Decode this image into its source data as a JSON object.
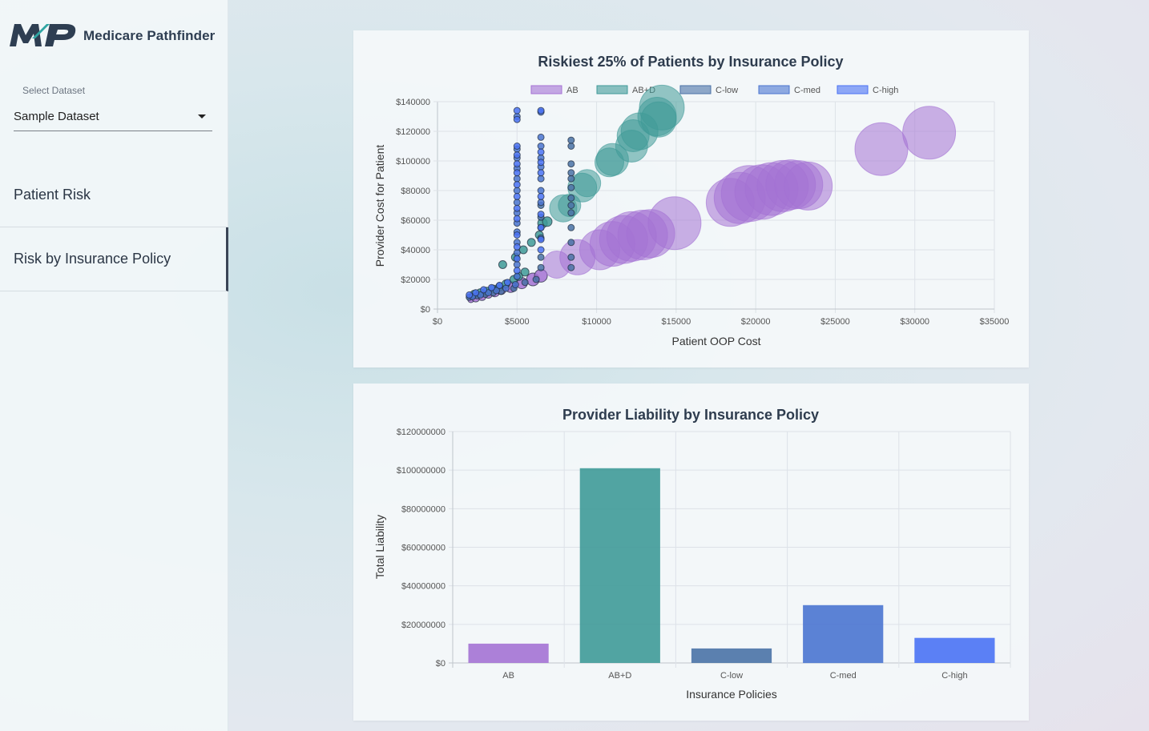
{
  "app": {
    "name": "Medicare Pathfinder",
    "logo_mark": "MP"
  },
  "sidebar": {
    "select_label": "Select Dataset",
    "select_value": "Sample Dataset",
    "items": [
      {
        "label": "Patient Risk",
        "active": false
      },
      {
        "label": "Risk by Insurance Policy",
        "active": true
      }
    ]
  },
  "colors": {
    "AB": "#a472d4",
    "AB+D": "#3f9a98",
    "C-low": "#4a72a6",
    "C-med": "#4a74d0",
    "C-high": "#4a72f4"
  },
  "chart_data": [
    {
      "type": "scatter",
      "title": "Riskiest 25% of Patients by Insurance Policy",
      "xlabel": "Patient OOP Cost",
      "ylabel": "Provider Cost for Patient",
      "xlim": [
        0,
        35000
      ],
      "ylim": [
        0,
        140000
      ],
      "xticks": [
        "$0",
        "$5000",
        "$10000",
        "$15000",
        "$20000",
        "$25000",
        "$30000",
        "$35000"
      ],
      "yticks": [
        "$0",
        "$20000",
        "$40000",
        "$60000",
        "$80000",
        "$100000",
        "$120000",
        "$140000"
      ],
      "legend": [
        "AB",
        "AB+D",
        "C-low",
        "C-med",
        "C-high"
      ],
      "legend_position": "top",
      "grid": true,
      "bubble": true,
      "series": [
        {
          "name": "AB",
          "points": [
            [
              2100,
              6500,
              4
            ],
            [
              2400,
              7500,
              5
            ],
            [
              2800,
              8500,
              5
            ],
            [
              3200,
              10000,
              5
            ],
            [
              3600,
              11500,
              6
            ],
            [
              4000,
              13000,
              6
            ],
            [
              4600,
              15000,
              7
            ],
            [
              5300,
              17500,
              7
            ],
            [
              6000,
              20000,
              8
            ],
            [
              6500,
              22500,
              8
            ],
            [
              7500,
              30000,
              17
            ],
            [
              8800,
              35000,
              22
            ],
            [
              10200,
              40000,
              25
            ],
            [
              11000,
              44000,
              28
            ],
            [
              11700,
              47000,
              30
            ],
            [
              12200,
              49000,
              31
            ],
            [
              12900,
              50000,
              31
            ],
            [
              13400,
              51000,
              30
            ],
            [
              14900,
              58000,
              33
            ],
            [
              18400,
              72000,
              30
            ],
            [
              19000,
              75000,
              32
            ],
            [
              19600,
              78000,
              35
            ],
            [
              20400,
              79000,
              34
            ],
            [
              21000,
              81000,
              33
            ],
            [
              21700,
              83000,
              32
            ],
            [
              22200,
              84000,
              31
            ],
            [
              22700,
              84000,
              30
            ],
            [
              23300,
              83000,
              30
            ],
            [
              27900,
              108000,
              33
            ],
            [
              30900,
              119000,
              33
            ]
          ]
        },
        {
          "name": "AB+D",
          "points": [
            [
              2300,
              10000,
              5
            ],
            [
              2700,
              11000,
              5
            ],
            [
              3100,
              12000,
              5
            ],
            [
              3500,
              13500,
              5
            ],
            [
              3900,
              15000,
              5
            ],
            [
              4300,
              17000,
              5
            ],
            [
              4800,
              20000,
              5
            ],
            [
              5100,
              22000,
              5
            ],
            [
              5500,
              25000,
              5
            ],
            [
              4100,
              30000,
              5
            ],
            [
              4900,
              35000,
              5
            ],
            [
              5400,
              40000,
              5
            ],
            [
              5900,
              45000,
              5
            ],
            [
              6400,
              50000,
              5
            ],
            [
              6600,
              58000,
              6
            ],
            [
              6900,
              59000,
              6
            ],
            [
              7900,
              68000,
              17
            ],
            [
              8300,
              70000,
              14
            ],
            [
              9100,
              82000,
              18
            ],
            [
              9400,
              85000,
              17
            ],
            [
              10800,
              99000,
              18
            ],
            [
              11000,
              101000,
              20
            ],
            [
              12200,
              110000,
              20
            ],
            [
              12700,
              120000,
              23
            ],
            [
              12300,
              117000,
              20
            ],
            [
              13800,
              130000,
              24
            ],
            [
              14100,
              136000,
              28
            ],
            [
              13900,
              128000,
              22
            ]
          ]
        },
        {
          "name": "C-low",
          "points": [
            [
              2000,
              8000,
              4
            ],
            [
              2500,
              9000,
              4
            ],
            [
              3000,
              10000,
              4
            ],
            [
              3500,
              11000,
              4
            ],
            [
              4000,
              12000,
              4
            ],
            [
              4800,
              14000,
              4
            ],
            [
              5500,
              18000,
              4
            ],
            [
              6200,
              20000,
              4
            ],
            [
              6500,
              28000,
              4
            ],
            [
              6500,
              35000,
              4
            ],
            [
              6500,
              48000,
              4
            ],
            [
              6500,
              55000,
              4
            ],
            [
              6500,
              62000,
              4
            ],
            [
              6500,
              70000,
              4
            ],
            [
              8400,
              28000,
              4
            ],
            [
              8400,
              35000,
              4
            ],
            [
              8400,
              45000,
              4
            ],
            [
              8400,
              55000,
              4
            ],
            [
              8400,
              65000,
              4
            ],
            [
              8400,
              70000,
              4
            ],
            [
              8400,
              75000,
              4
            ],
            [
              8400,
              82000,
              4
            ],
            [
              8400,
              88000,
              4
            ],
            [
              8400,
              92000,
              4
            ],
            [
              8400,
              98000,
              4
            ],
            [
              8400,
              110000,
              4
            ],
            [
              8400,
              114000,
              4
            ]
          ]
        },
        {
          "name": "C-med",
          "points": [
            [
              2200,
              8500,
              4
            ],
            [
              2700,
              9500,
              4
            ],
            [
              3200,
              11000,
              4
            ],
            [
              3700,
              12500,
              4
            ],
            [
              4300,
              14000,
              4
            ],
            [
              4900,
              16500,
              4
            ],
            [
              5000,
              22000,
              4
            ],
            [
              5000,
              30000,
              4
            ],
            [
              5000,
              38000,
              4
            ],
            [
              5000,
              45000,
              4
            ],
            [
              5000,
              52000,
              4
            ],
            [
              5000,
              58000,
              4
            ],
            [
              5000,
              65000,
              4
            ],
            [
              5000,
              72000,
              4
            ],
            [
              5000,
              80000,
              4
            ],
            [
              5000,
              88000,
              4
            ],
            [
              5000,
              95000,
              4
            ],
            [
              5000,
              102000,
              4
            ],
            [
              5000,
              108000,
              4
            ],
            [
              5000,
              130000,
              4
            ],
            [
              6500,
              72000,
              4
            ],
            [
              6500,
              80000,
              4
            ],
            [
              6500,
              88000,
              4
            ],
            [
              6500,
              96000,
              4
            ],
            [
              6500,
              102000,
              4
            ],
            [
              6500,
              110000,
              4
            ],
            [
              6500,
              116000,
              4
            ],
            [
              6500,
              133000,
              4
            ]
          ]
        },
        {
          "name": "C-high",
          "points": [
            [
              2000,
              9500,
              4
            ],
            [
              2400,
              11000,
              4
            ],
            [
              2900,
              13000,
              4
            ],
            [
              3400,
              14500,
              4
            ],
            [
              3900,
              16000,
              4
            ],
            [
              4400,
              18000,
              4
            ],
            [
              5000,
              26000,
              4
            ],
            [
              5000,
              34000,
              4
            ],
            [
              5000,
              42000,
              4
            ],
            [
              5000,
              50000,
              4
            ],
            [
              5000,
              61000,
              4
            ],
            [
              5000,
              68000,
              4
            ],
            [
              5000,
              76000,
              4
            ],
            [
              5000,
              84000,
              4
            ],
            [
              5000,
              92000,
              4
            ],
            [
              5000,
              98000,
              4
            ],
            [
              5000,
              104000,
              4
            ],
            [
              5000,
              110000,
              4
            ],
            [
              5000,
              128000,
              4
            ],
            [
              5000,
              134000,
              4
            ],
            [
              6500,
              40000,
              4
            ],
            [
              6500,
              47000,
              4
            ],
            [
              6500,
              55000,
              4
            ],
            [
              6500,
              64000,
              4
            ],
            [
              6500,
              76000,
              4
            ],
            [
              6500,
              92000,
              4
            ],
            [
              6500,
              99000,
              4
            ],
            [
              6500,
              106000,
              4
            ],
            [
              6500,
              134000,
              4
            ]
          ]
        }
      ]
    },
    {
      "type": "bar",
      "title": "Provider Liability by Insurance Policy",
      "xlabel": "Insurance Policies",
      "ylabel": "Total Liability",
      "categories": [
        "AB",
        "AB+D",
        "C-low",
        "C-med",
        "C-high"
      ],
      "values": [
        10000000,
        101000000,
        7500000,
        30000000,
        13000000
      ],
      "ylim": [
        0,
        120000000
      ],
      "yticks": [
        "$0",
        "$20000000",
        "$40000000",
        "$60000000",
        "$80000000",
        "$100000000",
        "$120000000"
      ],
      "grid": true
    }
  ]
}
